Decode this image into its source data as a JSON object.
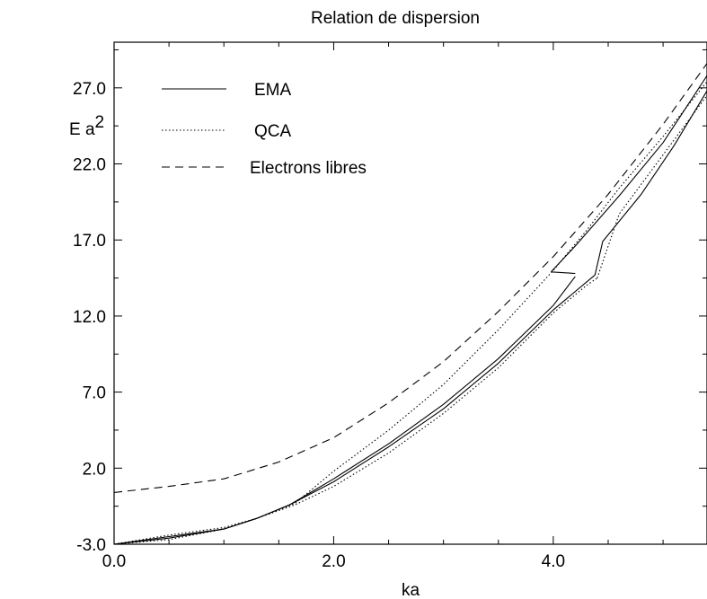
{
  "chart_data": {
    "type": "line",
    "title": "Relation de dispersion",
    "xlabel": "ka",
    "ylabel_main": "E a",
    "ylabel_sup": "2",
    "xlim": [
      0.0,
      5.4
    ],
    "ylim": [
      -3.0,
      30.0
    ],
    "xticks": [
      0.0,
      2.0,
      4.0
    ],
    "xtick_labels": [
      "0.0",
      "2.0",
      "4.0"
    ],
    "yticks": [
      -3.0,
      2.0,
      7.0,
      12.0,
      17.0,
      22.0,
      27.0
    ],
    "ytick_labels": [
      "-3.0",
      "2.0",
      "7.0",
      "12.0",
      "17.0",
      "22.0",
      "27.0"
    ],
    "grid": false,
    "legend_position": "top-left",
    "series": [
      {
        "name": "EMA",
        "style": "solid",
        "segments": [
          [
            [
              0.0,
              -3.0
            ],
            [
              0.5,
              -2.6
            ],
            [
              1.0,
              -2.0
            ],
            [
              1.3,
              -1.3
            ],
            [
              1.6,
              -0.4
            ],
            [
              2.0,
              1.3
            ],
            [
              2.5,
              3.6
            ],
            [
              3.0,
              6.2
            ],
            [
              3.5,
              9.2
            ],
            [
              4.0,
              12.7
            ],
            [
              4.2,
              14.6
            ]
          ],
          [
            [
              0.0,
              -3.0
            ],
            [
              0.5,
              -2.5
            ],
            [
              1.0,
              -2.0
            ],
            [
              1.3,
              -1.3
            ],
            [
              1.6,
              -0.4
            ],
            [
              2.0,
              1.1
            ],
            [
              2.5,
              3.4
            ],
            [
              3.0,
              5.9
            ],
            [
              3.5,
              8.9
            ],
            [
              4.0,
              12.4
            ],
            [
              4.38,
              14.7
            ]
          ],
          [
            [
              3.98,
              14.9
            ],
            [
              4.2,
              14.8
            ]
          ],
          [
            [
              3.98,
              14.9
            ],
            [
              4.2,
              16.6
            ],
            [
              4.6,
              19.9
            ],
            [
              5.0,
              23.4
            ],
            [
              5.4,
              27.8
            ]
          ],
          [
            [
              4.38,
              14.7
            ],
            [
              4.45,
              16.9
            ],
            [
              4.8,
              20.0
            ],
            [
              5.1,
              23.2
            ],
            [
              5.4,
              26.8
            ]
          ]
        ]
      },
      {
        "name": "QCA",
        "style": "dotted",
        "segments": [
          [
            [
              0.0,
              -3.0
            ],
            [
              0.5,
              -2.4
            ],
            [
              1.0,
              -1.9
            ],
            [
              1.3,
              -1.3
            ],
            [
              1.65,
              -0.3
            ],
            [
              2.0,
              1.8
            ],
            [
              2.5,
              4.5
            ],
            [
              3.0,
              7.5
            ],
            [
              3.5,
              11.1
            ],
            [
              4.0,
              15.0
            ],
            [
              4.3,
              17.6
            ],
            [
              4.6,
              20.4
            ],
            [
              5.0,
              23.8
            ],
            [
              5.4,
              27.4
            ]
          ],
          [
            [
              0.0,
              -3.0
            ],
            [
              0.5,
              -2.7
            ],
            [
              1.0,
              -2.0
            ],
            [
              1.3,
              -1.3
            ],
            [
              1.65,
              -0.4
            ],
            [
              2.0,
              0.8
            ],
            [
              2.5,
              3.0
            ],
            [
              3.0,
              5.6
            ],
            [
              3.5,
              8.6
            ],
            [
              4.0,
              12.2
            ],
            [
              4.3,
              14.0
            ],
            [
              4.4,
              14.5
            ]
          ],
          [
            [
              4.4,
              14.5
            ],
            [
              4.6,
              18.7
            ],
            [
              5.0,
              22.6
            ],
            [
              5.4,
              26.5
            ]
          ]
        ]
      },
      {
        "name": "Electrons libres",
        "style": "dashed",
        "segments": [
          [
            [
              0.0,
              0.4
            ],
            [
              0.5,
              0.8
            ],
            [
              1.0,
              1.3
            ],
            [
              1.5,
              2.4
            ],
            [
              2.0,
              4.0
            ],
            [
              2.5,
              6.3
            ],
            [
              3.0,
              9.0
            ],
            [
              3.5,
              12.3
            ],
            [
              4.0,
              15.9
            ],
            [
              4.5,
              20.0
            ],
            [
              5.0,
              24.6
            ],
            [
              5.4,
              28.6
            ]
          ]
        ]
      }
    ]
  }
}
